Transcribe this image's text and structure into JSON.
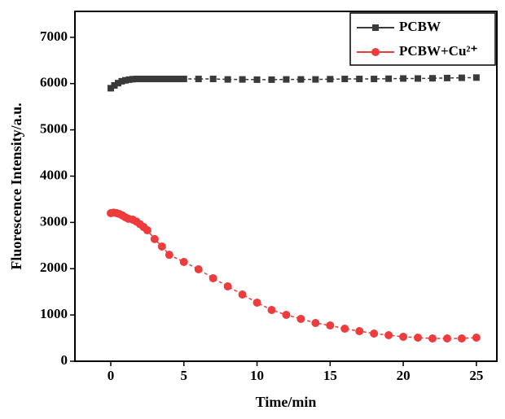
{
  "chart_data": {
    "type": "line",
    "x_label": "Time/min",
    "y_label": "Fluorescence Intensity/a.u.",
    "xlim": [
      -2.45,
      26.4
    ],
    "ylim": [
      0,
      7560
    ],
    "xticks": [
      0,
      5,
      10,
      15,
      20,
      25
    ],
    "yticks": [
      0,
      1000,
      2000,
      3000,
      4000,
      5000,
      6000,
      7000
    ],
    "legend": "upper right",
    "series": [
      {
        "name": "PCBW",
        "color": "#3a3a3a",
        "marker": "square",
        "x": [
          0,
          0.25,
          0.5,
          0.75,
          1,
          1.25,
          1.5,
          1.75,
          2,
          2.25,
          2.5,
          2.75,
          3,
          3.25,
          3.5,
          3.75,
          4,
          4.25,
          4.5,
          4.75,
          5,
          6,
          7,
          8,
          9,
          10,
          11,
          12,
          13,
          14,
          15,
          16,
          17,
          18,
          19,
          20,
          21,
          22,
          23,
          24,
          25
        ],
        "values": [
          5900,
          5960,
          6010,
          6050,
          6070,
          6085,
          6095,
          6100,
          6100,
          6100,
          6100,
          6100,
          6100,
          6100,
          6100,
          6100,
          6100,
          6100,
          6100,
          6100,
          6100,
          6100,
          6100,
          6090,
          6090,
          6085,
          6085,
          6090,
          6090,
          6090,
          6095,
          6100,
          6100,
          6100,
          6105,
          6110,
          6110,
          6115,
          6120,
          6125,
          6130
        ]
      },
      {
        "name": "PCBW+Cu²⁺",
        "color": "#ee3b3b",
        "marker": "circle",
        "x": [
          0,
          0.2,
          0.4,
          0.6,
          0.8,
          1,
          1.2,
          1.5,
          1.75,
          2,
          2.25,
          2.5,
          3,
          3.5,
          4,
          5,
          6,
          7,
          8,
          9,
          10,
          11,
          12,
          13,
          14,
          15,
          16,
          17,
          18,
          19,
          20,
          21,
          22,
          23,
          24,
          25
        ],
        "values": [
          3200,
          3210,
          3200,
          3180,
          3150,
          3110,
          3080,
          3060,
          3020,
          2960,
          2900,
          2830,
          2640,
          2480,
          2300,
          2146,
          1987,
          1794,
          1618,
          1442,
          1266,
          1108,
          1002,
          915,
          826,
          774,
          703,
          650,
          598,
          563,
          528,
          510,
          492,
          492,
          492,
          510
        ]
      }
    ]
  }
}
